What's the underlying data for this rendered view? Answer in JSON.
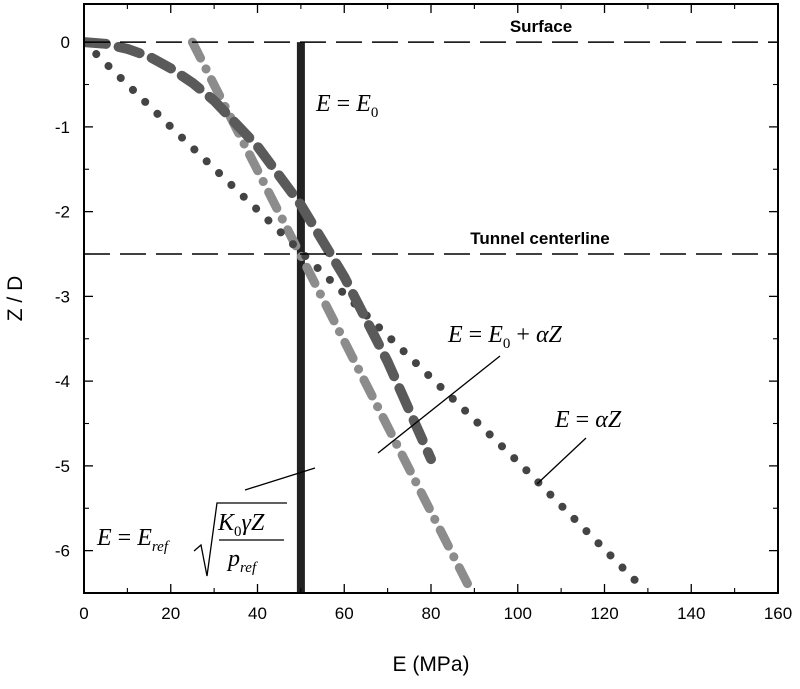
{
  "chart_data": {
    "type": "line",
    "xlabel": "E (MPa)",
    "ylabel": "Z / D",
    "xlim": [
      0,
      160
    ],
    "ylim": [
      -6.5,
      0.45
    ],
    "x_ticks": [
      0,
      20,
      40,
      60,
      80,
      100,
      120,
      140,
      160
    ],
    "y_ticks": [
      0,
      -1,
      -2,
      -3,
      -4,
      -5,
      -6
    ],
    "x_tick_labels": [
      "0",
      "20",
      "40",
      "60",
      "80",
      "100",
      "120",
      "140",
      "160"
    ],
    "y_tick_labels": [
      "0",
      "-1",
      "-2",
      "-3",
      "-4",
      "-5",
      "-6"
    ],
    "grid": false,
    "reference_lines": [
      {
        "y": 0,
        "label": "Surface"
      },
      {
        "y": -2.5,
        "label": "Tunnel centerline"
      }
    ],
    "series": [
      {
        "key": "constant",
        "style": "solid",
        "color": "#222222",
        "x": [
          50,
          50
        ],
        "y": [
          0,
          -6.5
        ]
      },
      {
        "key": "linear_offset",
        "style": "dash-dot",
        "color": "#8c8c8c",
        "x": [
          25,
          89.5
        ],
        "y": [
          0,
          -6.5
        ]
      },
      {
        "key": "proportional",
        "style": "dotted",
        "color": "#444444",
        "x": [
          0,
          5,
          10,
          20,
          40,
          60,
          80,
          100,
          128
        ],
        "y": [
          0,
          -0.25,
          -0.5,
          -1.0,
          -1.98,
          -2.97,
          -3.96,
          -4.95,
          -6.4
        ]
      },
      {
        "key": "sqrt",
        "style": "dashed",
        "color": "#5a5a5a",
        "x": [
          0,
          5,
          10,
          15,
          20,
          25,
          30,
          40,
          50,
          60,
          70,
          80
        ],
        "y": [
          0,
          -0.02,
          -0.08,
          -0.17,
          -0.31,
          -0.48,
          -0.69,
          -1.23,
          -1.92,
          -2.77,
          -3.77,
          -4.92
        ]
      }
    ],
    "annotations": {
      "constant": {
        "lhs": "E",
        "rhs": "E",
        "rhs_sub": "0"
      },
      "linear_offset": {
        "lhs": "E",
        "a": "E",
        "a_sub": "0",
        "b": "αZ"
      },
      "proportional": {
        "lhs": "E",
        "rhs": "αZ"
      },
      "sqrt": {
        "lhs": "E",
        "coef": "E",
        "coef_sub": "ref",
        "num": "K",
        "num_sub": "0",
        "num_rest": "γZ",
        "den": "p",
        "den_sub": "ref"
      }
    }
  }
}
